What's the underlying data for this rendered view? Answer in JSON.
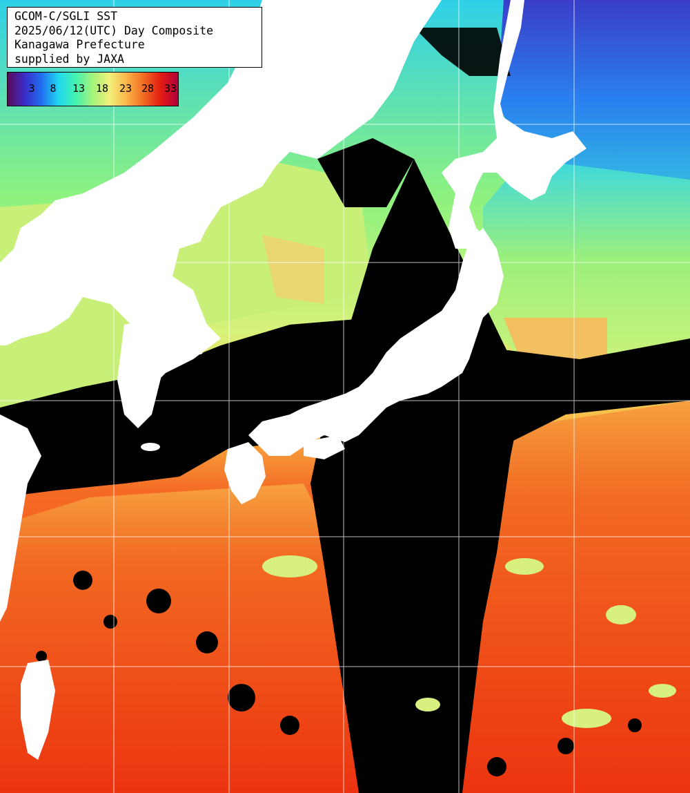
{
  "map": {
    "title_lines": [
      "GCOM-C/SGLI SST",
      "2025/06/12(UTC) Day Composite",
      "Kanagawa Prefecture",
      "supplied by JAXA"
    ],
    "legend": {
      "ticks": [
        "3",
        "8",
        "13",
        "18",
        "23",
        "28",
        "33"
      ],
      "colors": [
        "#5a0a5a",
        "#3a2cc8",
        "#1f6ff0",
        "#20d8f0",
        "#44f2b0",
        "#a6f37a",
        "#f3f07a",
        "#fbb34a",
        "#f26a22",
        "#e21c12",
        "#b0003c"
      ]
    },
    "colors": {
      "land": "#ffffff",
      "no_data": "#000000",
      "cold_water": "#3344cc",
      "cool_water": "#37d8e8",
      "mild_water": "#a8f07a",
      "warm_water": "#f7b24c",
      "hot_water": "#f0501c",
      "grid": "#ffffff"
    }
  }
}
